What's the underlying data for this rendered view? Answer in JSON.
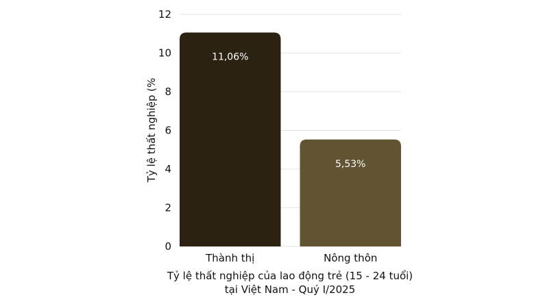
{
  "chart_data": {
    "type": "bar",
    "categories": [
      "Thành thị",
      "Nông thôn"
    ],
    "values": [
      11.06,
      5.53
    ],
    "data_labels": [
      "11,06%",
      "5,53%"
    ],
    "colors": [
      "#2b2212",
      "#625333"
    ],
    "xlabel_lines": [
      "Tỷ lệ thất nghiệp của lao động trẻ (15 - 24 tuổi)",
      "tại Việt Nam - Quý I/2025"
    ],
    "ylabel": "Tỷ lệ thất nghiệp (%",
    "ylim": [
      0,
      12
    ],
    "yticks": [
      0,
      2,
      4,
      6,
      8,
      10,
      12
    ],
    "grid": true,
    "legend": "none"
  }
}
